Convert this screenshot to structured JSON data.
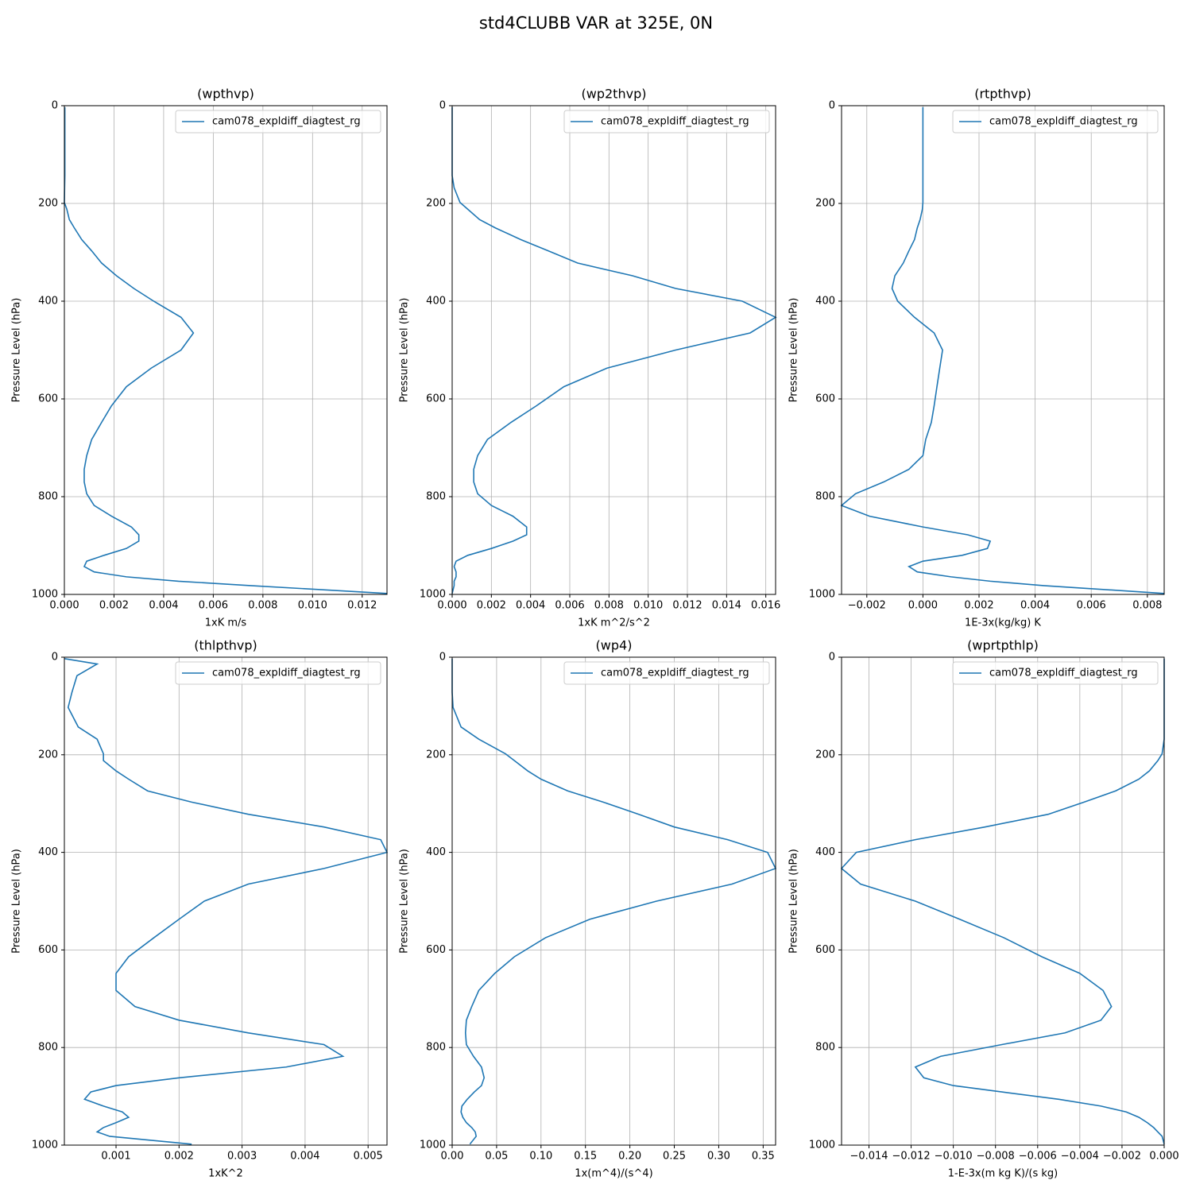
{
  "title": "std4CLUBB VAR at 325E, 0N",
  "chart_data": [
    {
      "type": "line",
      "title": "(wpthvp)",
      "xlabel": "1xK m/s",
      "ylabel": "Pressure Level (hPa)",
      "levels": [
        3,
        14,
        38,
        72,
        103,
        143,
        168,
        198,
        212,
        233,
        250,
        274,
        297,
        322,
        348,
        374,
        400,
        433,
        465,
        500,
        537,
        575,
        614,
        648,
        683,
        716,
        744,
        770,
        794,
        818,
        840,
        862,
        878,
        891,
        906,
        920,
        932,
        943,
        954,
        964,
        973,
        982,
        998
      ],
      "series": [
        {
          "name": "cam078_expldiff_diagtest_rg",
          "color": "#1f77b4",
          "values": [
            2e-05,
            2e-05,
            2e-05,
            2e-05,
            2e-05,
            2e-05,
            1e-05,
            0,
            0.0001,
            0.0002,
            0.0004,
            0.0007,
            0.0011,
            0.0015,
            0.0021,
            0.0028,
            0.0036,
            0.0047,
            0.0052,
            0.0047,
            0.0035,
            0.0025,
            0.0019,
            0.0015,
            0.0011,
            0.0009,
            0.0008,
            0.0008,
            0.0009,
            0.0012,
            0.0019,
            0.0027,
            0.003,
            0.003,
            0.0025,
            0.0016,
            0.0009,
            0.0008,
            0.0012,
            0.0025,
            0.0046,
            0.0075,
            0.013
          ]
        }
      ],
      "xlim": [
        0,
        0.013
      ],
      "xticks": [
        {
          "value": 0,
          "label": "0.000"
        },
        0.002,
        0.004,
        0.006,
        0.008,
        {
          "value": 0.01,
          "label": "0.010"
        },
        0.012
      ],
      "ylim": [
        1000,
        0
      ],
      "yticks": [
        0,
        200,
        400,
        600,
        800,
        1000
      ],
      "grid": true,
      "legend": "upper right"
    },
    {
      "type": "line",
      "title": "(wp2thvp)",
      "xlabel": "1xK m^2/s^2",
      "ylabel": "Pressure Level (hPa)",
      "levels": [
        3,
        14,
        38,
        72,
        103,
        143,
        168,
        198,
        212,
        233,
        250,
        274,
        297,
        322,
        348,
        374,
        400,
        433,
        465,
        500,
        537,
        575,
        614,
        648,
        683,
        716,
        744,
        770,
        794,
        818,
        840,
        862,
        878,
        891,
        906,
        920,
        932,
        943,
        954,
        964,
        973,
        982,
        998
      ],
      "series": [
        {
          "name": "cam078_expldiff_diagtest_rg",
          "color": "#1f77b4",
          "values": [
            0,
            0,
            0,
            0,
            0,
            0,
            0.0001,
            0.0004,
            0.0008,
            0.0014,
            0.0022,
            0.0035,
            0.0049,
            0.0064,
            0.0092,
            0.0114,
            0.0148,
            0.0165,
            0.0152,
            0.0114,
            0.0079,
            0.0057,
            0.0043,
            0.003,
            0.0018,
            0.0013,
            0.0011,
            0.0011,
            0.0013,
            0.002,
            0.0031,
            0.0038,
            0.0038,
            0.0031,
            0.002,
            0.0008,
            0.0002,
            0.0001,
            0.0002,
            0.0002,
            0.0001,
            0.0001,
            0
          ]
        }
      ],
      "xlim": [
        0,
        0.0165
      ],
      "xticks": [
        {
          "value": 0,
          "label": "0.000"
        },
        0.002,
        0.004,
        0.006,
        0.008,
        {
          "value": 0.01,
          "label": "0.010"
        },
        0.012,
        0.014,
        0.016
      ],
      "ylim": [
        1000,
        0
      ],
      "yticks": [
        0,
        200,
        400,
        600,
        800,
        1000
      ],
      "grid": true,
      "legend": "upper right"
    },
    {
      "type": "line",
      "title": "(rtpthvp)",
      "xlabel": "1E-3x(kg/kg) K",
      "ylabel": "Pressure Level (hPa)",
      "levels": [
        3,
        14,
        38,
        72,
        103,
        143,
        168,
        198,
        212,
        233,
        250,
        274,
        297,
        322,
        348,
        374,
        400,
        433,
        465,
        500,
        537,
        575,
        614,
        648,
        683,
        716,
        744,
        770,
        794,
        818,
        840,
        862,
        878,
        891,
        906,
        920,
        932,
        943,
        954,
        964,
        973,
        982,
        998
      ],
      "series": [
        {
          "name": "cam078_expldiff_diagtest_rg",
          "color": "#1f77b4",
          "values": [
            0,
            0,
            0,
            0,
            0,
            0,
            0,
            0,
            -2e-05,
            -0.0001,
            -0.0002,
            -0.0003,
            -0.0005,
            -0.0007,
            -0.001,
            -0.0011,
            -0.0009,
            -0.0003,
            0.0004,
            0.0007,
            0.0006,
            0.0005,
            0.0004,
            0.0003,
            0.0001,
            0,
            -0.0005,
            -0.0014,
            -0.0024,
            -0.0029,
            -0.0019,
            0,
            0.0016,
            0.0024,
            0.0023,
            0.0014,
            0,
            -0.0005,
            -0.0002,
            0.001,
            0.0024,
            0.0043,
            0.0086
          ]
        }
      ],
      "xlim": [
        -0.0029,
        0.0086
      ],
      "xticks": [
        {
          "value": -0.002,
          "label": "−0.002"
        },
        {
          "value": 0,
          "label": "0.000"
        },
        0.002,
        0.004,
        0.006,
        0.008
      ],
      "ylim": [
        1000,
        0
      ],
      "yticks": [
        0,
        200,
        400,
        600,
        800,
        1000
      ],
      "grid": true,
      "legend": "upper right"
    },
    {
      "type": "line",
      "title": "(thlpthvp)",
      "xlabel": "1xK^2",
      "ylabel": "Pressure Level (hPa)",
      "levels": [
        3,
        14,
        38,
        72,
        103,
        143,
        168,
        198,
        212,
        233,
        250,
        274,
        297,
        322,
        348,
        374,
        400,
        433,
        465,
        500,
        537,
        575,
        614,
        648,
        683,
        716,
        744,
        770,
        794,
        818,
        840,
        862,
        878,
        891,
        906,
        920,
        932,
        943,
        954,
        964,
        973,
        982,
        998
      ],
      "series": [
        {
          "name": "cam078_expldiff_diagtest_rg",
          "color": "#1f77b4",
          "values": [
            0.00018,
            0.0007,
            0.00038,
            0.0003,
            0.00024,
            0.0004,
            0.0007,
            0.0008,
            0.0008,
            0.001,
            0.0012,
            0.0015,
            0.0022,
            0.0031,
            0.0043,
            0.0052,
            0.0053,
            0.0043,
            0.0031,
            0.0024,
            0.002,
            0.0016,
            0.0012,
            0.001,
            0.001,
            0.0013,
            0.002,
            0.0031,
            0.0043,
            0.0046,
            0.0037,
            0.002,
            0.001,
            0.0006,
            0.0005,
            0.0008,
            0.0011,
            0.0012,
            0.001,
            0.0008,
            0.0007,
            0.0009,
            0.0022
          ]
        }
      ],
      "xlim": [
        0.00018,
        0.0053
      ],
      "xticks": [
        0.001,
        0.002,
        0.003,
        0.004,
        0.005
      ],
      "ylim": [
        1000,
        0
      ],
      "yticks": [
        0,
        200,
        400,
        600,
        800,
        1000
      ],
      "grid": true,
      "legend": "upper right"
    },
    {
      "type": "line",
      "title": "(wp4)",
      "xlabel": "1x(m^4)/(s^4)",
      "ylabel": "Pressure Level (hPa)",
      "levels": [
        3,
        14,
        38,
        72,
        103,
        143,
        168,
        198,
        212,
        233,
        250,
        274,
        297,
        322,
        348,
        374,
        400,
        433,
        465,
        500,
        537,
        575,
        614,
        648,
        683,
        716,
        744,
        770,
        794,
        818,
        840,
        862,
        878,
        891,
        906,
        920,
        932,
        943,
        954,
        964,
        973,
        982,
        998
      ],
      "series": [
        {
          "name": "cam078_expldiff_diagtest_rg",
          "color": "#1f77b4",
          "values": [
            0,
            0,
            0,
            0,
            0.001,
            0.01,
            0.03,
            0.06,
            0.07,
            0.085,
            0.1,
            0.13,
            0.17,
            0.21,
            0.25,
            0.31,
            0.355,
            0.364,
            0.315,
            0.23,
            0.155,
            0.105,
            0.07,
            0.048,
            0.03,
            0.022,
            0.016,
            0.015,
            0.016,
            0.024,
            0.033,
            0.036,
            0.033,
            0.025,
            0.017,
            0.011,
            0.01,
            0.012,
            0.016,
            0.022,
            0.026,
            0.027,
            0.02
          ]
        }
      ],
      "xlim": [
        0,
        0.364
      ],
      "xticks": [
        {
          "value": 0,
          "label": "0.00"
        },
        0.05,
        {
          "value": 0.1,
          "label": "0.10"
        },
        0.15,
        {
          "value": 0.2,
          "label": "0.20"
        },
        0.25,
        {
          "value": 0.3,
          "label": "0.30"
        },
        0.35
      ],
      "ylim": [
        1000,
        0
      ],
      "yticks": [
        0,
        200,
        400,
        600,
        800,
        1000
      ],
      "grid": true,
      "legend": "upper right"
    },
    {
      "type": "line",
      "title": "(wprtpthlp)",
      "xlabel": "1-E-3x(m kg K)/(s kg)",
      "ylabel": "Pressure Level (hPa)",
      "levels": [
        3,
        14,
        38,
        72,
        103,
        143,
        168,
        198,
        212,
        233,
        250,
        274,
        297,
        322,
        348,
        374,
        400,
        433,
        465,
        500,
        537,
        575,
        614,
        648,
        683,
        716,
        744,
        770,
        794,
        818,
        840,
        862,
        878,
        891,
        906,
        920,
        932,
        943,
        954,
        964,
        973,
        982,
        998
      ],
      "series": [
        {
          "name": "cam078_expldiff_diagtest_rg",
          "color": "#1f77b4",
          "values": [
            0,
            0,
            0,
            0,
            0,
            0,
            0,
            -0.0001,
            -0.0003,
            -0.0007,
            -0.0012,
            -0.0023,
            -0.0038,
            -0.0055,
            -0.0085,
            -0.0118,
            -0.0146,
            -0.0153,
            -0.0144,
            -0.0118,
            -0.0097,
            -0.0076,
            -0.0058,
            -0.004,
            -0.0029,
            -0.0025,
            -0.003,
            -0.0047,
            -0.0077,
            -0.0106,
            -0.0118,
            -0.0114,
            -0.01,
            -0.0077,
            -0.005,
            -0.003,
            -0.0018,
            -0.0012,
            -0.0008,
            -0.0005,
            -0.0003,
            -0.0001,
            0
          ]
        }
      ],
      "xlim": [
        -0.0153,
        0
      ],
      "xticks": [
        {
          "value": -0.014,
          "label": "−0.014"
        },
        {
          "value": -0.012,
          "label": "−0.012"
        },
        {
          "value": -0.01,
          "label": "−0.010"
        },
        {
          "value": -0.008,
          "label": "−0.008"
        },
        {
          "value": -0.006,
          "label": "−0.006"
        },
        {
          "value": -0.004,
          "label": "−0.004"
        },
        {
          "value": -0.002,
          "label": "−0.002"
        },
        {
          "value": 0,
          "label": "0.000"
        }
      ],
      "ylim": [
        1000,
        0
      ],
      "yticks": [
        0,
        200,
        400,
        600,
        800,
        1000
      ],
      "grid": true,
      "legend": "upper right"
    }
  ]
}
